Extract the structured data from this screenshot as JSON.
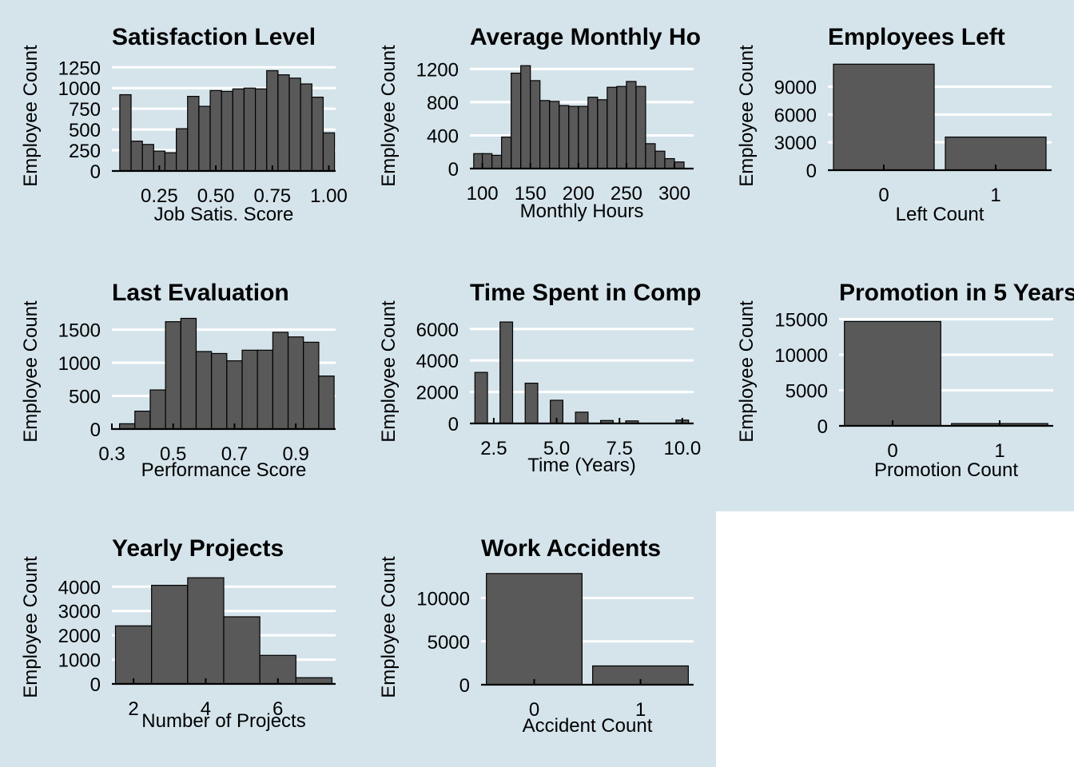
{
  "colors": {
    "panel_bg": "#d5e4eb",
    "grid": "#ffffff",
    "bar_fill": "#595959",
    "bar_stroke": "#000000",
    "axis": "#000000"
  },
  "chart_data": [
    {
      "type": "bar",
      "title": "Satisfaction Level",
      "xlabel": "Job Satis. Score",
      "ylabel": "Employee Count",
      "xlim": [
        0.04,
        1.03
      ],
      "ylim": [
        0,
        1330
      ],
      "xticks": [
        0.25,
        0.5,
        0.75,
        1.0
      ],
      "xtick_labels": [
        "0.25",
        "0.50",
        "0.75",
        "1.00"
      ],
      "yticks": [
        0,
        250,
        500,
        750,
        1000,
        1250
      ],
      "ytick_labels": [
        "0",
        "250",
        "500",
        "750",
        "1000",
        "1250"
      ],
      "bar_centers": [
        0.1,
        0.15,
        0.2,
        0.25,
        0.3,
        0.35,
        0.4,
        0.45,
        0.5,
        0.55,
        0.6,
        0.65,
        0.7,
        0.75,
        0.8,
        0.85,
        0.9,
        0.95,
        1.0
      ],
      "bar_width": 0.05,
      "values": [
        920,
        360,
        320,
        240,
        220,
        510,
        900,
        780,
        970,
        960,
        990,
        1000,
        990,
        1210,
        1160,
        1120,
        1050,
        890,
        460
      ]
    },
    {
      "type": "bar",
      "title": "Average Monthly Ho",
      "xlabel": "Monthly Hours",
      "ylabel": "Employee Count",
      "xlim": [
        87,
        320
      ],
      "ylim": [
        0,
        1300
      ],
      "xticks": [
        100,
        150,
        200,
        250,
        300
      ],
      "xtick_labels": [
        "100",
        "150",
        "200",
        "250",
        "300"
      ],
      "yticks": [
        0,
        400,
        800,
        1200
      ],
      "ytick_labels": [
        "0",
        "400",
        "800",
        "1200"
      ],
      "bar_centers": [
        96,
        105,
        115,
        125,
        135,
        145,
        155,
        165,
        175,
        185,
        195,
        205,
        215,
        225,
        235,
        245,
        255,
        265,
        275,
        285,
        295,
        305
      ],
      "bar_width": 10,
      "values": [
        180,
        180,
        160,
        380,
        1150,
        1240,
        1060,
        820,
        810,
        760,
        750,
        750,
        860,
        830,
        980,
        990,
        1050,
        990,
        300,
        210,
        120,
        80
      ]
    },
    {
      "type": "bar",
      "title": "Employees Left",
      "xlabel": "Left Count",
      "ylabel": "Employee Count",
      "categories": [
        "0",
        "1"
      ],
      "ylim": [
        0,
        11800
      ],
      "yticks": [
        0,
        3000,
        6000,
        9000
      ],
      "ytick_labels": [
        "0",
        "3000",
        "6000",
        "9000"
      ],
      "values": [
        11428,
        3571
      ]
    },
    {
      "type": "bar",
      "title": "Last Evaluation",
      "xlabel": "Performance Score",
      "ylabel": "Employee Count",
      "xlim": [
        0.3,
        1.03
      ],
      "ylim": [
        0,
        1700
      ],
      "xticks": [
        0.3,
        0.5,
        0.7,
        0.9
      ],
      "xtick_labels": [
        "0.3",
        "0.5",
        "0.7",
        "0.9"
      ],
      "yticks": [
        0,
        500,
        1000,
        1500
      ],
      "ytick_labels": [
        "0",
        "500",
        "1000",
        "1500"
      ],
      "bar_centers": [
        0.35,
        0.4,
        0.45,
        0.5,
        0.55,
        0.6,
        0.65,
        0.7,
        0.75,
        0.8,
        0.85,
        0.9,
        0.95,
        1.0
      ],
      "bar_width": 0.05,
      "values": [
        80,
        270,
        590,
        1620,
        1670,
        1170,
        1140,
        1030,
        1190,
        1190,
        1460,
        1390,
        1310,
        800
      ]
    },
    {
      "type": "bar",
      "title": "Time Spent in Comp",
      "xlabel": "Time (Years)",
      "ylabel": "Employee Count",
      "xlim": [
        1.55,
        10.45
      ],
      "ylim": [
        0,
        6800
      ],
      "xticks": [
        2.5,
        5.0,
        7.5,
        10.0
      ],
      "xtick_labels": [
        "2.5",
        "5.0",
        "7.5",
        "10.0"
      ],
      "yticks": [
        0,
        2000,
        4000,
        6000
      ],
      "ytick_labels": [
        "0",
        "2000",
        "4000",
        "6000"
      ],
      "bar_centers": [
        2,
        3,
        4,
        5,
        6,
        7,
        8,
        10
      ],
      "bar_width": 0.5,
      "values": [
        3244,
        6443,
        2557,
        1473,
        718,
        188,
        162,
        214
      ]
    },
    {
      "type": "bar",
      "title": "Promotion in 5 Years",
      "xlabel": "Promotion Count",
      "ylabel": "Employee Count",
      "categories": [
        "0",
        "1"
      ],
      "ylim": [
        0,
        15400
      ],
      "yticks": [
        0,
        5000,
        10000,
        15000
      ],
      "ytick_labels": [
        "0",
        "5000",
        "10000",
        "15000"
      ],
      "values": [
        14680,
        319
      ]
    },
    {
      "type": "bar",
      "title": "Yearly Projects",
      "xlabel": "Number of Projects",
      "ylabel": "Employee Count",
      "xlim": [
        1.4,
        7.6
      ],
      "ylim": [
        0,
        4600
      ],
      "xticks": [
        2,
        4,
        6
      ],
      "xtick_labels": [
        "2",
        "4",
        "6"
      ],
      "yticks": [
        0,
        1000,
        2000,
        3000,
        4000
      ],
      "ytick_labels": [
        "0",
        "1000",
        "2000",
        "3000",
        "4000"
      ],
      "bar_centers": [
        2,
        3,
        4,
        5,
        6,
        7
      ],
      "bar_width": 1,
      "values": [
        2388,
        4055,
        4365,
        2761,
        1174,
        256
      ]
    },
    {
      "type": "bar",
      "title": "Work Accidents",
      "xlabel": "Accident Count",
      "ylabel": "Employee Count",
      "categories": [
        "0",
        "1"
      ],
      "ylim": [
        0,
        13000
      ],
      "yticks": [
        0,
        5000,
        10000
      ],
      "ytick_labels": [
        "0",
        "5000",
        "10000"
      ],
      "values": [
        12830,
        2169
      ]
    }
  ]
}
